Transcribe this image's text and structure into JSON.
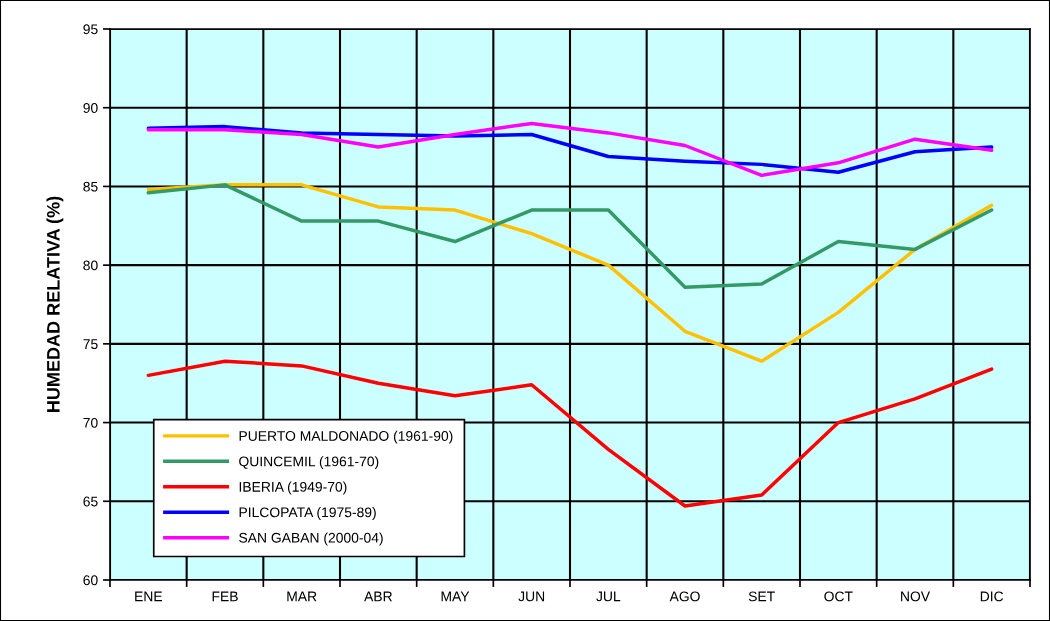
{
  "chart_data": {
    "type": "line",
    "ylabel": "HUMEDAD RELATIVA (%)",
    "categories": [
      "ENE",
      "FEB",
      "MAR",
      "ABR",
      "MAY",
      "JUN",
      "JUL",
      "AGO",
      "SET",
      "OCT",
      "NOV",
      "DIC"
    ],
    "series": [
      {
        "name": "PUERTO MALDONADO (1961-90)",
        "color": "#ffc000",
        "values": [
          84.8,
          85.1,
          85.1,
          83.7,
          83.5,
          82.0,
          80.0,
          75.8,
          73.9,
          77.0,
          81.0,
          83.8
        ]
      },
      {
        "name": "QUINCEMIL (1961-70)",
        "color": "#339966",
        "values": [
          84.6,
          85.1,
          82.8,
          82.8,
          81.5,
          83.5,
          83.5,
          78.6,
          78.8,
          81.5,
          81.0,
          83.5
        ]
      },
      {
        "name": "IBERIA (1949-70)",
        "color": "#ff0000",
        "values": [
          73.0,
          73.9,
          73.6,
          72.5,
          71.7,
          72.4,
          68.3,
          64.7,
          65.4,
          70.0,
          71.5,
          73.4
        ]
      },
      {
        "name": "PILCOPATA (1975-89)",
        "color": "#0000ff",
        "values": [
          88.7,
          88.8,
          88.4,
          88.3,
          88.2,
          88.3,
          86.9,
          86.6,
          86.4,
          85.9,
          87.2,
          87.5
        ]
      },
      {
        "name": "SAN GABAN (2000-04)",
        "color": "#ff00ff",
        "values": [
          88.6,
          88.6,
          88.3,
          87.5,
          88.3,
          89.0,
          88.4,
          87.6,
          85.7,
          86.5,
          88.0,
          87.3
        ]
      }
    ],
    "ylim": [
      60,
      95
    ],
    "yticks": [
      60,
      65,
      70,
      75,
      80,
      85,
      90,
      95
    ],
    "grid": true,
    "legend": "bottom left",
    "marker": "none",
    "line_style": "solid"
  }
}
